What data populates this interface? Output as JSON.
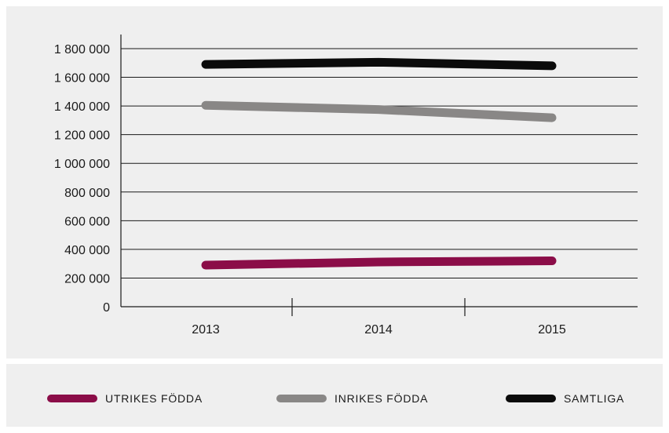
{
  "chart_data": {
    "type": "line",
    "categories": [
      "2013",
      "2014",
      "2015"
    ],
    "series": [
      {
        "name": "UTRIKES FÖDDA",
        "color": "#8b0d48",
        "values": [
          290000,
          312000,
          320000
        ]
      },
      {
        "name": "INRIKES FÖDDA",
        "color": "#898786",
        "values": [
          1405000,
          1375000,
          1318000
        ]
      },
      {
        "name": "SAMTLIGA",
        "color": "#0b0b0b",
        "values": [
          1690000,
          1705000,
          1680000
        ]
      }
    ],
    "ylim": [
      0,
      1800000
    ],
    "yticks": [
      0,
      200000,
      400000,
      600000,
      800000,
      1000000,
      1200000,
      1400000,
      1600000,
      1800000
    ],
    "ytick_labels": [
      "0",
      "200 000",
      "400 000",
      "600 000",
      "800 000",
      "1 000 000",
      "1 200 000",
      "1 400 000",
      "1 600 000",
      "1 800 000"
    ],
    "grid": true,
    "legend_position": "bottom"
  }
}
